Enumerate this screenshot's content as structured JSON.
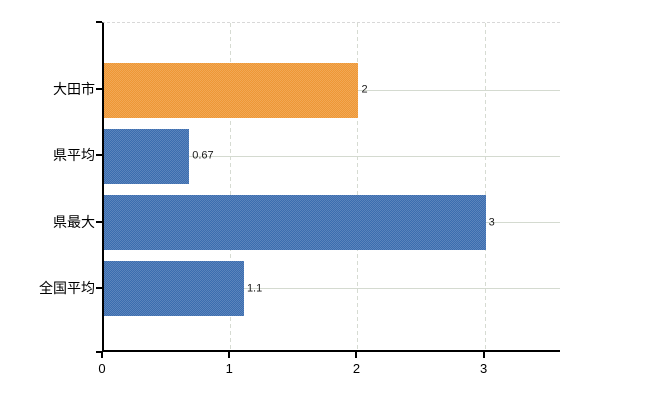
{
  "chart": {
    "background_color": "#ffffff",
    "axis_color": "#000000",
    "grid_color": "#d4dad0",
    "top_border_color": "#d8d8d8"
  },
  "chart_data": {
    "type": "bar",
    "orientation": "horizontal",
    "title": "",
    "xlabel": "",
    "ylabel": "",
    "categories": [
      "大田市",
      "県平均",
      "県最大",
      "全国平均"
    ],
    "values": [
      2,
      0.67,
      3,
      1.1
    ],
    "value_labels": [
      "2",
      "0.67",
      "3",
      "1.1"
    ],
    "bar_colors": [
      "#ee9735",
      "#3b6daf",
      "#3b6daf",
      "#3b6daf"
    ],
    "highlight_category": "大田市",
    "x_ticks": [
      "0",
      "1",
      "2",
      "3"
    ],
    "x_tick_values": [
      0,
      1,
      2,
      3
    ],
    "xlim": [
      0,
      3.6
    ],
    "grid": true,
    "legend": false
  }
}
